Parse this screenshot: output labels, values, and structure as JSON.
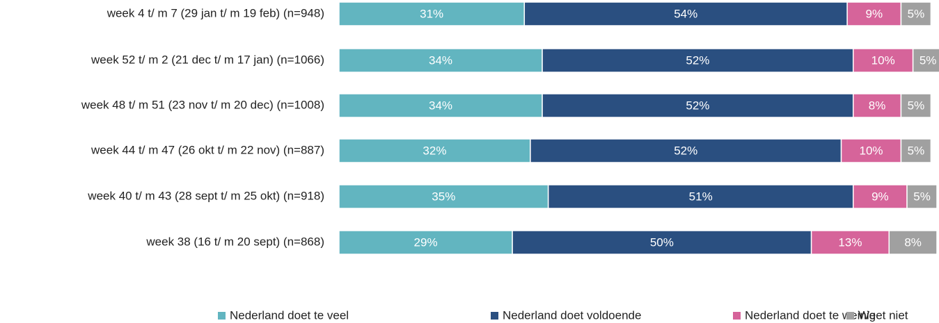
{
  "chart_data": {
    "type": "stacked_bar_horizontal",
    "categories": [
      "week 4 t/ m 7 (29 jan t/ m 19 feb) (n=948)",
      "week 52 t/ m 2 (21 dec t/ m 17 jan) (n=1066)",
      "week 48 t/ m 51 (23 nov t/ m 20 dec) (n=1008)",
      "week 44 t/ m 47 (26 okt t/ m 22 nov) (n=887)",
      "week 40 t/ m 43 (28 sept t/ m 25 okt) (n=918)",
      "week 38 (16 t/ m 20 sept) (n=868)"
    ],
    "series": [
      {
        "name": "Nederland doet te veel",
        "color": "#62b5c0",
        "values": [
          31,
          34,
          34,
          32,
          35,
          29
        ],
        "value_labels": [
          "31%",
          "34%",
          "34%",
          "32%",
          "35%",
          "29%"
        ]
      },
      {
        "name": "Nederland doet voldoende",
        "color": "#2a4f80",
        "values": [
          54,
          52,
          52,
          52,
          51,
          50
        ],
        "value_labels": [
          "54%",
          "52%",
          "52%",
          "52%",
          "51%",
          "50%"
        ]
      },
      {
        "name": "Nederland doet te weinig",
        "color": "#d6649a",
        "values": [
          9,
          10,
          8,
          10,
          9,
          13
        ],
        "value_labels": [
          "9%",
          "10%",
          "8%",
          "10%",
          "9%",
          "13%"
        ]
      },
      {
        "name": "Weet niet",
        "color": "#a0a0a0",
        "values": [
          5,
          5,
          5,
          5,
          5,
          8
        ],
        "value_labels": [
          "5%",
          "5%",
          "5%",
          "5%",
          "5%",
          "8%"
        ]
      }
    ],
    "xlim": [
      0,
      100
    ],
    "legend": "bottom"
  }
}
